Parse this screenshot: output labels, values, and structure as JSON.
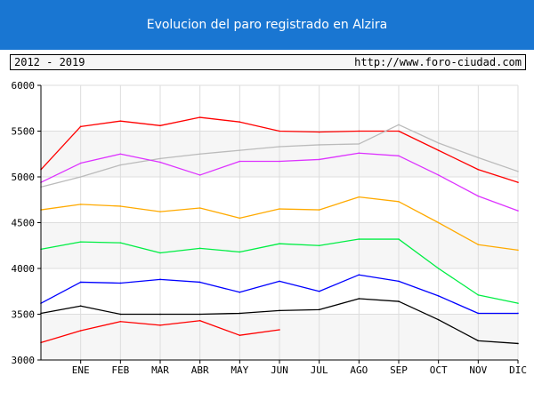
{
  "header": {
    "title": "Evolucion del paro registrado en Alzira"
  },
  "info": {
    "range": "2012 - 2019",
    "url": "http://www.foro-ciudad.com"
  },
  "chart_data": {
    "type": "line",
    "title": "Evolucion del paro registrado en Alzira",
    "xlabel": "",
    "ylabel": "",
    "x_ticks": [
      "ENE",
      "FEB",
      "MAR",
      "ABR",
      "MAY",
      "JUN",
      "JUL",
      "AGO",
      "SEP",
      "OCT",
      "NOV",
      "DIC"
    ],
    "y_ticks": [
      3000,
      3500,
      4000,
      4500,
      5000,
      5500,
      6000
    ],
    "ylim": [
      3000,
      6000
    ],
    "xlim": [
      0,
      12
    ],
    "grid": true,
    "legend": "none",
    "series": [
      {
        "color": "#ff0000",
        "x": [
          0,
          1,
          2,
          3,
          4,
          5,
          6,
          7,
          8,
          9,
          10,
          11,
          12
        ],
        "values": [
          5080,
          5550,
          5610,
          5560,
          5650,
          5600,
          5500,
          5490,
          5500,
          5500,
          5290,
          5080,
          4940
        ]
      },
      {
        "color": "#bbbbbb",
        "x": [
          0,
          1,
          2,
          3,
          4,
          5,
          6,
          7,
          8,
          9,
          10,
          11,
          12
        ],
        "values": [
          4890,
          5000,
          5130,
          5200,
          5250,
          5290,
          5330,
          5350,
          5360,
          5570,
          5370,
          5210,
          5060
        ]
      },
      {
        "color": "#dd33ff",
        "x": [
          0,
          1,
          2,
          3,
          4,
          5,
          6,
          7,
          8,
          9,
          10,
          11,
          12
        ],
        "values": [
          4940,
          5150,
          5250,
          5160,
          5020,
          5170,
          5170,
          5190,
          5260,
          5230,
          5020,
          4790,
          4630
        ]
      },
      {
        "color": "#ffaa00",
        "x": [
          0,
          1,
          2,
          3,
          4,
          5,
          6,
          7,
          8,
          9,
          10,
          11,
          12
        ],
        "values": [
          4640,
          4700,
          4680,
          4620,
          4660,
          4550,
          4650,
          4640,
          4780,
          4730,
          4500,
          4260,
          4200
        ]
      },
      {
        "color": "#00ee44",
        "x": [
          0,
          1,
          2,
          3,
          4,
          5,
          6,
          7,
          8,
          9,
          10,
          11,
          12
        ],
        "values": [
          4210,
          4290,
          4280,
          4170,
          4220,
          4180,
          4270,
          4250,
          4320,
          4320,
          4000,
          3710,
          3620
        ]
      },
      {
        "color": "#0000ff",
        "x": [
          0,
          1,
          2,
          3,
          4,
          5,
          6,
          7,
          8,
          9,
          10,
          11,
          12
        ],
        "values": [
          3620,
          3850,
          3840,
          3880,
          3850,
          3740,
          3860,
          3750,
          3930,
          3860,
          3700,
          3510,
          3510
        ]
      },
      {
        "color": "#000000",
        "x": [
          0,
          1,
          2,
          3,
          4,
          5,
          6,
          7,
          8,
          9,
          10,
          11,
          12
        ],
        "values": [
          3510,
          3590,
          3500,
          3500,
          3500,
          3510,
          3540,
          3550,
          3670,
          3640,
          3440,
          3210,
          3180
        ]
      },
      {
        "color": "#ff0000",
        "x": [
          0,
          1,
          2,
          3,
          4,
          5,
          6
        ],
        "values": [
          3190,
          3320,
          3420,
          3380,
          3430,
          3270,
          3330
        ]
      }
    ]
  }
}
